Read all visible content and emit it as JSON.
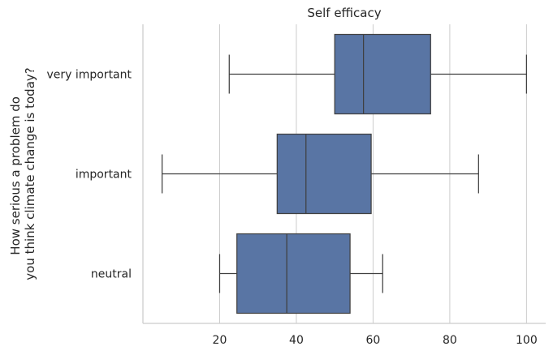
{
  "chart_data": {
    "type": "box",
    "orientation": "horizontal",
    "title": "Self efficacy",
    "xlabel": "",
    "ylabel_lines": [
      "How serious a problem do",
      "you think climate change is today?"
    ],
    "xlim": [
      0,
      105
    ],
    "xticks": [
      20,
      40,
      60,
      80,
      100
    ],
    "grid": "x",
    "box_color": "#5975a4",
    "line_color": "#404040",
    "categories": [
      "very important",
      "important",
      "neutral"
    ],
    "boxes": [
      {
        "category": "very important",
        "whisker_low": 22.5,
        "q1": 50,
        "median": 57.5,
        "q3": 75,
        "whisker_high": 100
      },
      {
        "category": "important",
        "whisker_low": 5,
        "q1": 35,
        "median": 42.5,
        "q3": 59.5,
        "whisker_high": 87.5
      },
      {
        "category": "neutral",
        "whisker_low": 20,
        "q1": 24.5,
        "median": 37.5,
        "q3": 54,
        "whisker_high": 62.5
      }
    ]
  }
}
